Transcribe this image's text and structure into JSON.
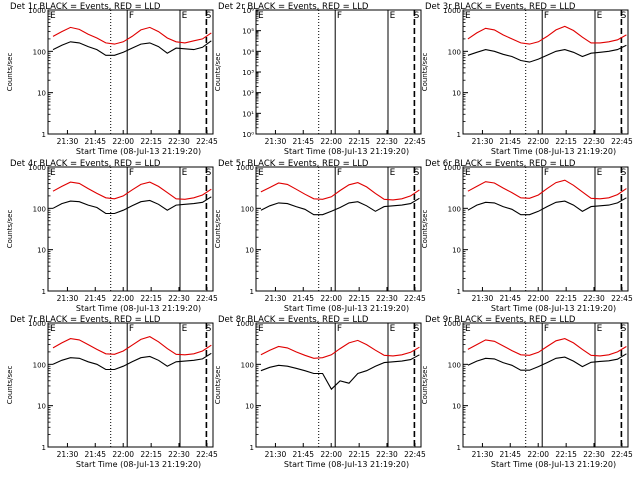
{
  "chart_data": [
    {
      "type": "line",
      "title": "Det 1r BLACK = Events, RED = LLD",
      "xlabel": "Start Time (08-Jul-13 21:19:20)",
      "ylabel": "Counts/sec",
      "yscale": "log",
      "ylim": [
        1,
        1000
      ],
      "y_ticks": [
        "1",
        "10",
        "100",
        "1000"
      ],
      "x_tick_labels": [
        "21:30",
        "21:45",
        "22:00",
        "22:15",
        "22:30",
        "22:45"
      ],
      "markers": [
        "E",
        "F",
        "E",
        "S"
      ],
      "series": [
        {
          "color": "#e00000",
          "values": [
            230,
            300,
            380,
            340,
            260,
            210,
            160,
            150,
            170,
            230,
            330,
            380,
            300,
            210,
            170,
            160,
            180,
            200,
            280
          ]
        },
        {
          "color": "#000000",
          "values": [
            110,
            140,
            170,
            160,
            130,
            110,
            80,
            80,
            95,
            120,
            150,
            160,
            130,
            90,
            120,
            115,
            110,
            125,
            180
          ]
        }
      ]
    },
    {
      "type": "line",
      "title": "Det 2r BLACK = Events, RED = LLD",
      "xlabel": "Start Time (08-Jul-13 21:19:20)",
      "ylabel": "Counts/sec",
      "yscale": "log",
      "ylim": [
        1,
        1000000
      ],
      "y_ticks": [
        "10⁰",
        "10¹",
        "10²",
        "10³",
        "10⁴",
        "10⁵",
        "10⁶"
      ],
      "x_tick_labels": [
        "21:30",
        "21:45",
        "22:00",
        "22:15",
        "22:30",
        "22:45"
      ],
      "markers": [
        "E",
        "F",
        "E",
        "S"
      ],
      "series": []
    },
    {
      "type": "line",
      "title": "Det 3r BLACK = Events, RED = LLD",
      "xlabel": "Start Time (08-Jul-13 21:19:20)",
      "ylabel": "Counts/sec",
      "yscale": "log",
      "ylim": [
        1,
        1000
      ],
      "y_ticks": [
        "1",
        "10",
        "100",
        "1000"
      ],
      "x_tick_labels": [
        "21:30",
        "21:45",
        "22:00",
        "22:15",
        "22:30",
        "22:45"
      ],
      "markers": [
        "E",
        "F",
        "E",
        "S"
      ],
      "series": [
        {
          "color": "#e00000",
          "values": [
            200,
            280,
            360,
            330,
            250,
            200,
            160,
            150,
            170,
            230,
            330,
            400,
            320,
            220,
            160,
            160,
            170,
            190,
            250
          ]
        },
        {
          "color": "#000000",
          "values": [
            80,
            95,
            110,
            100,
            85,
            75,
            60,
            55,
            65,
            80,
            100,
            110,
            95,
            75,
            90,
            95,
            100,
            110,
            140
          ]
        }
      ]
    },
    {
      "type": "line",
      "title": "Det 4r BLACK = Events, RED = LLD",
      "xlabel": "Start Time (08-Jul-13 21:19:20)",
      "ylabel": "Counts/sec",
      "yscale": "log",
      "ylim": [
        1,
        1000
      ],
      "y_ticks": [
        "1",
        "10",
        "100",
        "1000"
      ],
      "x_tick_labels": [
        "21:30",
        "21:45",
        "22:00",
        "22:15",
        "22:30",
        "22:45"
      ],
      "markers": [
        "E",
        "F",
        "E",
        "S"
      ],
      "series": [
        {
          "color": "#e00000",
          "values": [
            260,
            340,
            430,
            400,
            300,
            230,
            180,
            170,
            200,
            280,
            380,
            430,
            340,
            240,
            170,
            165,
            180,
            210,
            290
          ]
        },
        {
          "color": "#000000",
          "values": [
            100,
            130,
            150,
            145,
            120,
            105,
            75,
            75,
            90,
            115,
            145,
            155,
            125,
            90,
            120,
            125,
            130,
            140,
            190
          ]
        }
      ]
    },
    {
      "type": "line",
      "title": "Det 5r BLACK = Events, RED = LLD",
      "xlabel": "Start Time (08-Jul-13 21:19:20)",
      "ylabel": "Counts/sec",
      "yscale": "log",
      "ylim": [
        1,
        1000
      ],
      "y_ticks": [
        "1",
        "10",
        "100",
        "1000"
      ],
      "x_tick_labels": [
        "21:30",
        "21:45",
        "22:00",
        "22:15",
        "22:30",
        "22:45"
      ],
      "markers": [
        "E",
        "F",
        "E",
        "S"
      ],
      "series": [
        {
          "color": "#e00000",
          "values": [
            250,
            320,
            410,
            380,
            290,
            220,
            170,
            165,
            190,
            270,
            370,
            420,
            330,
            230,
            165,
            160,
            170,
            200,
            280
          ]
        },
        {
          "color": "#000000",
          "values": [
            90,
            115,
            135,
            130,
            110,
            95,
            70,
            70,
            85,
            105,
            135,
            145,
            115,
            85,
            110,
            115,
            120,
            130,
            175
          ]
        }
      ]
    },
    {
      "type": "line",
      "title": "Det 6r BLACK = Events, RED = LLD",
      "xlabel": "Start Time (08-Jul-13 21:19:20)",
      "ylabel": "Counts/sec",
      "yscale": "log",
      "ylim": [
        1,
        1000
      ],
      "y_ticks": [
        "1",
        "10",
        "100",
        "1000"
      ],
      "x_tick_labels": [
        "21:30",
        "21:45",
        "22:00",
        "22:15",
        "22:30",
        "22:45"
      ],
      "markers": [
        "E",
        "F",
        "E",
        "S"
      ],
      "series": [
        {
          "color": "#e00000",
          "values": [
            260,
            340,
            440,
            410,
            310,
            240,
            180,
            175,
            210,
            300,
            420,
            480,
            360,
            250,
            175,
            170,
            180,
            215,
            300
          ]
        },
        {
          "color": "#000000",
          "values": [
            90,
            120,
            140,
            135,
            110,
            95,
            70,
            70,
            85,
            110,
            140,
            150,
            120,
            85,
            110,
            115,
            120,
            135,
            180
          ]
        }
      ]
    },
    {
      "type": "line",
      "title": "Det 7r BLACK = Events, RED = LLD",
      "xlabel": "Start Time (08-Jul-13 21:19:20)",
      "ylabel": "Counts/sec",
      "yscale": "log",
      "ylim": [
        1,
        1000
      ],
      "y_ticks": [
        "1",
        "10",
        "100",
        "1000"
      ],
      "x_tick_labels": [
        "21:30",
        "21:45",
        "22:00",
        "22:15",
        "22:30",
        "22:45"
      ],
      "markers": [
        "E",
        "F",
        "E",
        "S"
      ],
      "series": [
        {
          "color": "#e00000",
          "values": [
            250,
            330,
            420,
            390,
            300,
            230,
            180,
            175,
            210,
            290,
            400,
            470,
            350,
            240,
            175,
            170,
            180,
            210,
            290
          ]
        },
        {
          "color": "#000000",
          "values": [
            100,
            125,
            145,
            140,
            115,
            100,
            75,
            75,
            90,
            115,
            145,
            155,
            125,
            90,
            115,
            120,
            125,
            135,
            185
          ]
        }
      ]
    },
    {
      "type": "line",
      "title": "Det 8r BLACK = Events, RED = LLD",
      "xlabel": "Start Time (08-Jul-13 21:19:20)",
      "ylabel": "Counts/sec",
      "yscale": "log",
      "ylim": [
        1,
        1000
      ],
      "y_ticks": [
        "1",
        "10",
        "100",
        "1000"
      ],
      "x_tick_labels": [
        "21:30",
        "21:45",
        "22:00",
        "22:15",
        "22:30",
        "22:45"
      ],
      "markers": [
        "E",
        "F",
        "E",
        "S"
      ],
      "series": [
        {
          "color": "#e00000",
          "values": [
            170,
            220,
            270,
            250,
            200,
            165,
            140,
            145,
            170,
            240,
            330,
            380,
            300,
            220,
            165,
            160,
            170,
            195,
            260
          ]
        },
        {
          "color": "#000000",
          "values": [
            70,
            85,
            95,
            90,
            80,
            70,
            60,
            60,
            25,
            40,
            35,
            60,
            70,
            90,
            110,
            115,
            120,
            130,
            170
          ]
        }
      ]
    },
    {
      "type": "line",
      "title": "Det 9r BLACK = Events, RED = LLD",
      "xlabel": "Start Time (08-Jul-13 21:19:20)",
      "ylabel": "Counts/sec",
      "yscale": "log",
      "ylim": [
        1,
        1000
      ],
      "y_ticks": [
        "1",
        "10",
        "100",
        "1000"
      ],
      "x_tick_labels": [
        "21:30",
        "21:45",
        "22:00",
        "22:15",
        "22:30",
        "22:45"
      ],
      "markers": [
        "E",
        "F",
        "E",
        "S"
      ],
      "series": [
        {
          "color": "#e00000",
          "values": [
            230,
            300,
            390,
            360,
            280,
            215,
            170,
            165,
            195,
            270,
            370,
            420,
            330,
            230,
            165,
            160,
            170,
            200,
            270
          ]
        },
        {
          "color": "#000000",
          "values": [
            95,
            120,
            140,
            135,
            110,
            95,
            72,
            72,
            88,
            110,
            140,
            150,
            120,
            88,
            112,
            118,
            122,
            133,
            180
          ]
        }
      ]
    }
  ]
}
